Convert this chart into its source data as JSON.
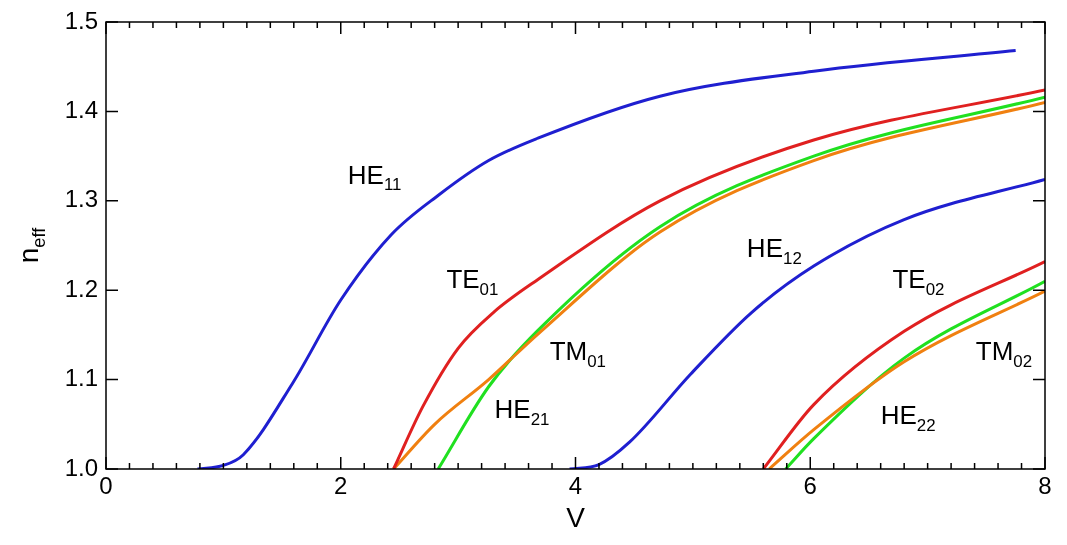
{
  "chart_data": {
    "type": "line",
    "xlabel": "V",
    "ylabel": "n$_{eff}$",
    "xlim": [
      0,
      8
    ],
    "ylim": [
      1.0,
      1.5
    ],
    "xticks": [
      0,
      {
        "value": 0.2,
        "label": null
      },
      {
        "value": 0.4,
        "label": null
      },
      {
        "value": 0.6,
        "label": null
      },
      {
        "value": 0.8,
        "label": null
      },
      {
        "value": 1,
        "label": null
      },
      {
        "value": 1.2,
        "label": null
      },
      {
        "value": 1.4,
        "label": null
      },
      {
        "value": 1.6,
        "label": null
      },
      {
        "value": 1.8,
        "label": null
      },
      2,
      {
        "value": 2.2,
        "label": null
      },
      {
        "value": 2.4,
        "label": null
      },
      {
        "value": 2.6,
        "label": null
      },
      {
        "value": 2.8,
        "label": null
      },
      {
        "value": 3,
        "label": null
      },
      {
        "value": 3.2,
        "label": null
      },
      {
        "value": 3.4,
        "label": null
      },
      {
        "value": 3.6,
        "label": null
      },
      {
        "value": 3.8,
        "label": null
      },
      4,
      {
        "value": 4.2,
        "label": null
      },
      {
        "value": 4.4,
        "label": null
      },
      {
        "value": 4.6,
        "label": null
      },
      {
        "value": 4.8,
        "label": null
      },
      {
        "value": 5,
        "label": null
      },
      {
        "value": 5.2,
        "label": null
      },
      {
        "value": 5.4,
        "label": null
      },
      {
        "value": 5.6,
        "label": null
      },
      {
        "value": 5.8,
        "label": null
      },
      6,
      {
        "value": 6.2,
        "label": null
      },
      {
        "value": 6.4,
        "label": null
      },
      {
        "value": 6.6,
        "label": null
      },
      {
        "value": 6.8,
        "label": null
      },
      {
        "value": 7,
        "label": null
      },
      {
        "value": 7.2,
        "label": null
      },
      {
        "value": 7.4,
        "label": null
      },
      {
        "value": 7.6,
        "label": null
      },
      {
        "value": 7.8,
        "label": null
      },
      8
    ],
    "yticks": [
      {
        "value": 1.0,
        "label": "1.0"
      },
      1.1,
      1.2,
      1.3,
      1.4,
      1.5
    ],
    "grid": false,
    "legend": false,
    "marker": "none",
    "line_style": "solid",
    "series": [
      {
        "name": "HE$_{11}$",
        "color": "#1f1fd0",
        "x": [
          0.78,
          1.0,
          1.17,
          1.59,
          2.0,
          2.43,
          2.84,
          3.26,
          3.68,
          4.72,
          6.03,
          7.75
        ],
        "values": [
          1.0,
          1.004,
          1.016,
          1.096,
          1.189,
          1.262,
          1.307,
          1.345,
          1.37,
          1.417,
          1.445,
          1.468
        ]
      },
      {
        "name": "TE$_{01}$",
        "color": "#e02020",
        "x": [
          2.45,
          2.7,
          3.0,
          3.3,
          3.68,
          4.72,
          6.03,
          8.0
        ],
        "values": [
          1.0,
          1.07,
          1.135,
          1.175,
          1.212,
          1.3,
          1.368,
          1.424
        ]
      },
      {
        "name": "TM$_{01}$",
        "color": "#f08010",
        "x": [
          2.45,
          2.8,
          3.26,
          3.68,
          4.72,
          6.03,
          8.0
        ],
        "values": [
          1.0,
          1.05,
          1.1,
          1.151,
          1.265,
          1.345,
          1.41
        ]
      },
      {
        "name": "HE$_{21}$",
        "color": "#20e020",
        "x": [
          2.83,
          3.26,
          3.68,
          4.72,
          6.03,
          8.0
        ],
        "values": [
          1.0,
          1.092,
          1.155,
          1.271,
          1.35,
          1.416
        ]
      },
      {
        "name": "HE$_{12}$",
        "color": "#1f1fd0",
        "x": [
          3.95,
          4.2,
          4.46,
          4.98,
          5.5,
          6.03,
          6.8,
          8.0
        ],
        "values": [
          1.0,
          1.005,
          1.03,
          1.106,
          1.175,
          1.227,
          1.279,
          1.324
        ]
      },
      {
        "name": "TE$_{02}$",
        "color": "#e02020",
        "x": [
          5.6,
          6.03,
          6.8,
          8.0
        ],
        "values": [
          1.0,
          1.072,
          1.154,
          1.232
        ]
      },
      {
        "name": "TM$_{02}$",
        "color": "#f08010",
        "x": [
          5.65,
          6.03,
          6.8,
          8.0
        ],
        "values": [
          1.0,
          1.044,
          1.12,
          1.199
        ]
      },
      {
        "name": "HE$_{22}$",
        "color": "#20e020",
        "x": [
          5.79,
          6.03,
          6.8,
          8.0
        ],
        "values": [
          1.0,
          1.034,
          1.124,
          1.21
        ]
      }
    ]
  }
}
